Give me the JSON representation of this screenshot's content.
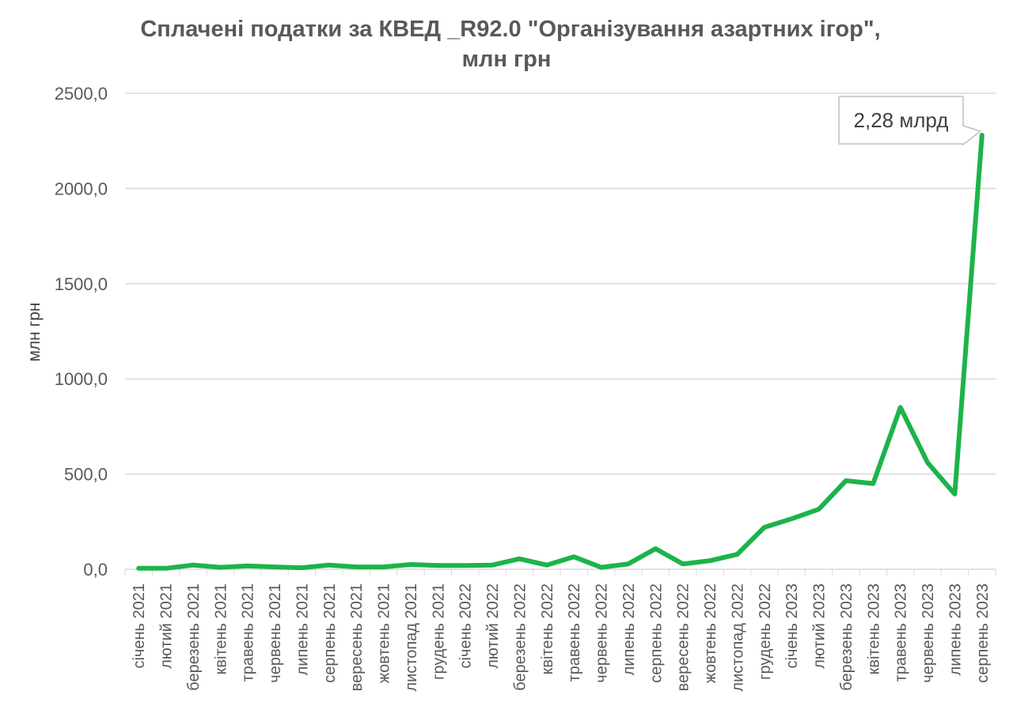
{
  "chart_data": {
    "type": "line",
    "title_lines": [
      "Сплачені податки за КВЕД _R92.0 \"Організування азартних ігор\",",
      "млн грн"
    ],
    "xlabel": "",
    "ylabel": "млн грн",
    "ylim": [
      0,
      2500
    ],
    "yticks": [
      0,
      500,
      1000,
      1500,
      2000,
      2500
    ],
    "ytick_labels": [
      "0,0",
      "500,0",
      "1000,0",
      "1500,0",
      "2000,0",
      "2500,0"
    ],
    "grid": true,
    "legend": "none",
    "line_color": "#1db34a",
    "categories": [
      "січень 2021",
      "лютий 2021",
      "березень 2021",
      "квітень 2021",
      "травень 2021",
      "червень 2021",
      "липень 2021",
      "серпень 2021",
      "вересень 2021",
      "жовтень 2021",
      "листопад 2021",
      "грудень 2021",
      "січень 2022",
      "лютий 2022",
      "березень 2022",
      "квітень 2022",
      "травень 2022",
      "червень 2022",
      "липень 2022",
      "серпень 2022",
      "вересень 2022",
      "жовтень 2022",
      "листопад 2022",
      "грудень 2022",
      "січень 2023",
      "лютий 2023",
      "березень 2023",
      "квітень 2023",
      "травень 2023",
      "червень 2023",
      "липень 2023",
      "серпень 2023"
    ],
    "series": [
      {
        "name": "Сплачені податки",
        "values": [
          5,
          5,
          22,
          10,
          18,
          12,
          8,
          22,
          12,
          12,
          25,
          20,
          20,
          22,
          55,
          22,
          65,
          10,
          28,
          108,
          28,
          45,
          78,
          220,
          265,
          315,
          465,
          450,
          850,
          560,
          395,
          2280
        ]
      }
    ],
    "annotations": [
      {
        "text": "2,28 млрд",
        "category": "серпень 2023",
        "value": 2280
      }
    ]
  }
}
